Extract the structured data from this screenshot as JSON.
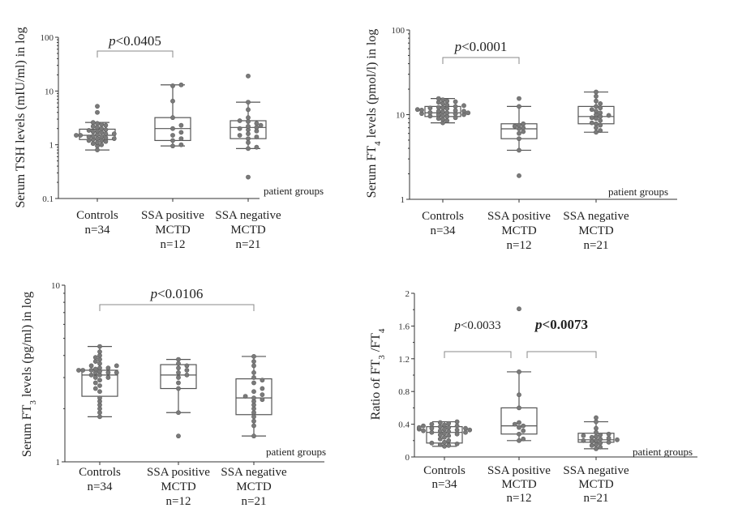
{
  "chart_data": [
    {
      "type": "box",
      "ylabel": "Serum TSH levels  (mIU/ml) in log",
      "yscale": "log",
      "ylim": [
        0.1,
        100
      ],
      "y_ticks": [
        "0.1",
        "1",
        "10",
        "100"
      ],
      "xlabel": "patient groups",
      "categories": [
        "Controls\nn=34",
        "SSA positive\nMCTD\nn=12",
        "SSA negative\nMCTD\nn=21"
      ],
      "boxes": [
        {
          "min": 0.8,
          "q1": 1.25,
          "median": 1.5,
          "q3": 1.95,
          "max": 2.6
        },
        {
          "min": 0.95,
          "q1": 1.2,
          "median": 2.0,
          "q3": 3.2,
          "max": 13.0
        },
        {
          "min": 0.85,
          "q1": 1.3,
          "median": 2.1,
          "q3": 2.8,
          "max": 6.2
        }
      ],
      "points": [
        [
          0.8,
          0.95,
          1.0,
          1.05,
          1.1,
          1.15,
          1.2,
          1.2,
          1.25,
          1.3,
          1.3,
          1.35,
          1.4,
          1.4,
          1.45,
          1.5,
          1.5,
          1.55,
          1.6,
          1.6,
          1.7,
          1.75,
          1.8,
          1.85,
          1.9,
          2.0,
          2.1,
          2.2,
          2.3,
          2.4,
          2.5,
          2.6,
          4.0,
          5.2
        ],
        [
          0.95,
          1.0,
          1.2,
          1.3,
          1.5,
          1.7,
          2.0,
          2.3,
          3.2,
          6.5,
          12.5,
          13.0
        ],
        [
          0.25,
          0.85,
          0.9,
          1.1,
          1.3,
          1.4,
          1.5,
          1.6,
          1.8,
          1.9,
          2.0,
          2.1,
          2.2,
          2.3,
          2.5,
          2.7,
          2.8,
          3.2,
          4.5,
          6.2,
          19.0
        ]
      ],
      "comparisons": [
        {
          "from": 0,
          "to": 1,
          "label": "p<0.0405"
        }
      ]
    },
    {
      "type": "box",
      "ylabel": "Serum FT4 levels  (pmol/l) in log",
      "yscale": "log",
      "ylim": [
        1,
        100
      ],
      "y_ticks": [
        "1",
        "10",
        "100"
      ],
      "xlabel": "patient groups",
      "categories": [
        "Controls\nn=34",
        "SSA positive\nMCTD\nn=12",
        "SSA negative\nMCTD\nn=21"
      ],
      "boxes": [
        {
          "min": 8.0,
          "q1": 9.5,
          "median": 10.5,
          "q3": 12.5,
          "max": 15.5
        },
        {
          "min": 3.8,
          "q1": 5.2,
          "median": 6.8,
          "q3": 7.8,
          "max": 12.5
        },
        {
          "min": 6.2,
          "q1": 7.8,
          "median": 9.5,
          "q3": 12.5,
          "max": 18.5
        }
      ],
      "points": [
        [
          8.0,
          8.5,
          8.8,
          9.0,
          9.2,
          9.5,
          9.6,
          9.8,
          10.0,
          10.0,
          10.2,
          10.3,
          10.5,
          10.5,
          10.6,
          10.8,
          11.0,
          11.0,
          11.2,
          11.3,
          11.5,
          11.8,
          12.0,
          12.0,
          12.2,
          12.5,
          12.8,
          13.0,
          13.5,
          14.0,
          14.2,
          14.5,
          15.0,
          15.5
        ],
        [
          1.9,
          3.8,
          5.2,
          6.0,
          6.3,
          6.8,
          7.0,
          7.3,
          7.5,
          7.8,
          12.5,
          15.5
        ],
        [
          6.2,
          6.5,
          7.0,
          7.5,
          7.8,
          8.0,
          8.5,
          9.0,
          9.2,
          9.5,
          9.8,
          10.0,
          10.5,
          11.0,
          11.5,
          12.0,
          12.5,
          13.5,
          14.5,
          16.5,
          18.5
        ]
      ],
      "comparisons": [
        {
          "from": 0,
          "to": 1,
          "label": "p<0.0001"
        }
      ]
    },
    {
      "type": "box",
      "ylabel": "Serum FT3  levels (pg/ml) in log",
      "yscale": "log",
      "ylim": [
        1,
        10
      ],
      "y_ticks": [
        "1",
        "10"
      ],
      "xlabel": "patient groups",
      "categories": [
        "Controls\nn=34",
        "SSA positive\nMCTD\nn=12",
        "SSA negative\nMCTD\nn=21"
      ],
      "boxes": [
        {
          "min": 1.8,
          "q1": 2.35,
          "median": 3.1,
          "q3": 3.3,
          "max": 4.5
        },
        {
          "min": 1.9,
          "q1": 2.6,
          "median": 3.1,
          "q3": 3.55,
          "max": 3.8
        },
        {
          "min": 1.4,
          "q1": 1.85,
          "median": 2.3,
          "q3": 2.95,
          "max": 3.95
        }
      ],
      "points": [
        [
          1.8,
          1.9,
          2.0,
          2.1,
          2.2,
          2.3,
          2.5,
          2.6,
          2.7,
          2.8,
          2.9,
          3.0,
          3.0,
          3.1,
          3.1,
          3.2,
          3.2,
          3.2,
          3.25,
          3.3,
          3.3,
          3.3,
          3.35,
          3.4,
          3.4,
          3.5,
          3.5,
          3.6,
          3.7,
          3.8,
          3.9,
          4.0,
          4.2,
          4.5
        ],
        [
          1.4,
          1.9,
          2.6,
          2.8,
          3.0,
          3.1,
          3.2,
          3.3,
          3.4,
          3.5,
          3.6,
          3.8
        ],
        [
          1.4,
          1.6,
          1.7,
          1.8,
          1.9,
          2.0,
          2.1,
          2.2,
          2.25,
          2.3,
          2.35,
          2.4,
          2.5,
          2.6,
          2.8,
          2.9,
          3.0,
          3.2,
          3.5,
          3.7,
          3.95
        ]
      ],
      "comparisons": [
        {
          "from": 0,
          "to": 2,
          "label": "p<0.0106"
        }
      ]
    },
    {
      "type": "box",
      "ylabel": "Ratio of  FT3 /FT4",
      "yscale": "linear",
      "ylim": [
        0,
        2
      ],
      "y_ticks": [
        "0",
        "0.4",
        "0.8",
        "1.2",
        "1.6",
        "2"
      ],
      "xlabel": "patient groups",
      "categories": [
        "Controls\nn=34",
        "SSA positive\nMCTD\nn=12",
        "SSA negative\nMCTD\nn=21"
      ],
      "boxes": [
        {
          "min": 0.13,
          "q1": 0.17,
          "median": 0.3,
          "q3": 0.37,
          "max": 0.43
        },
        {
          "min": 0.2,
          "q1": 0.28,
          "median": 0.38,
          "q3": 0.6,
          "max": 1.04
        },
        {
          "min": 0.1,
          "q1": 0.18,
          "median": 0.21,
          "q3": 0.29,
          "max": 0.43
        }
      ],
      "points": [
        [
          0.13,
          0.14,
          0.15,
          0.16,
          0.17,
          0.18,
          0.2,
          0.22,
          0.24,
          0.26,
          0.27,
          0.28,
          0.29,
          0.3,
          0.3,
          0.31,
          0.32,
          0.32,
          0.33,
          0.33,
          0.34,
          0.34,
          0.35,
          0.35,
          0.36,
          0.36,
          0.37,
          0.38,
          0.38,
          0.39,
          0.4,
          0.41,
          0.42,
          0.43
        ],
        [
          0.2,
          0.22,
          0.28,
          0.32,
          0.36,
          0.38,
          0.4,
          0.42,
          0.6,
          0.76,
          1.04,
          1.81
        ],
        [
          0.1,
          0.12,
          0.14,
          0.15,
          0.17,
          0.18,
          0.19,
          0.2,
          0.2,
          0.21,
          0.22,
          0.23,
          0.24,
          0.25,
          0.26,
          0.27,
          0.28,
          0.3,
          0.35,
          0.43,
          0.48
        ]
      ],
      "comparisons": [
        {
          "from": 0,
          "to": 1,
          "label": "p<0.0033",
          "style": "small"
        },
        {
          "from": 1,
          "to": 2,
          "label": "p<0.0073",
          "style": "bold"
        }
      ]
    }
  ]
}
